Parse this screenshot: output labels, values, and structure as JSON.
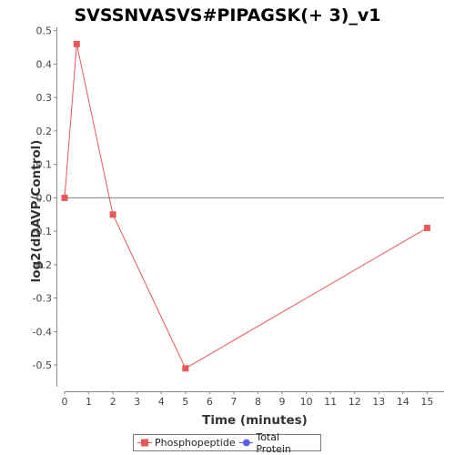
{
  "chart_data": {
    "type": "line",
    "title": "SVSSNVASVS#PIPAGSK(+ 3)_v1",
    "xlabel": "Time (minutes)",
    "ylabel": "log2(dDAVP/Control)",
    "xlim": [
      0,
      15.7
    ],
    "ylim": [
      -0.565,
      0.51
    ],
    "x_ticks": [
      0,
      1,
      2,
      3,
      4,
      5,
      6,
      7,
      8,
      9,
      10,
      11,
      12,
      13,
      14,
      15
    ],
    "y_ticks": [
      0.5,
      0.4,
      0.3,
      0.2,
      0.1,
      0.0,
      -0.1,
      -0.2,
      -0.3,
      -0.4,
      -0.5
    ],
    "y_tick_labels": [
      "0.5",
      "0.4",
      "0.3",
      "0.2",
      "0.1",
      "0.0",
      "-0.1",
      "-0.2",
      "-0.3",
      "-0.4",
      "-0.5"
    ],
    "zero_line": true,
    "grid": false,
    "legend_position": "bottom",
    "series": [
      {
        "name": "Phosphopeptide",
        "color": "#e8585a",
        "marker": "square",
        "x": [
          0,
          0.5,
          2,
          5,
          15
        ],
        "y": [
          0.0,
          0.46,
          -0.05,
          -0.51,
          -0.09
        ]
      },
      {
        "name": "Total Protein",
        "color": "#5b5bf0",
        "marker": "circle",
        "x": [],
        "y": []
      }
    ]
  }
}
